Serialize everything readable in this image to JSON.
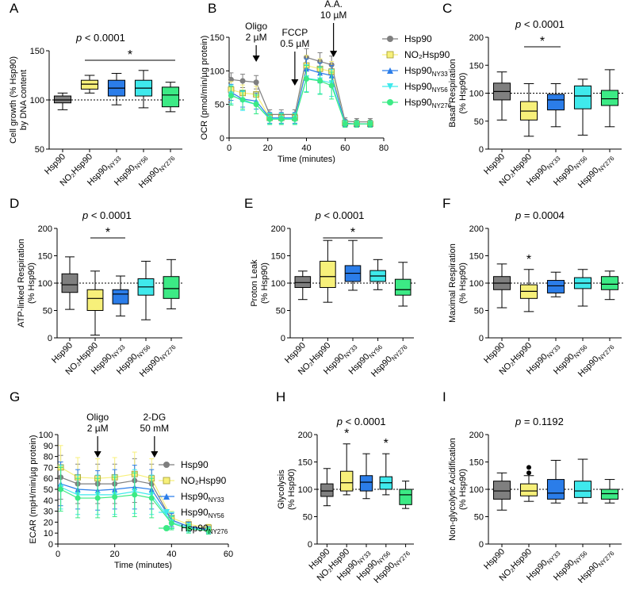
{
  "colors": {
    "Hsp90": "#7f7f7f",
    "NO2Hsp90": "#f7f07a",
    "Hsp90NY33": "#2b7de9",
    "Hsp90NY56": "#3fe9ec",
    "Hsp90NY276": "#3cea85"
  },
  "group_labels": [
    {
      "main": "Hsp90",
      "sub": ""
    },
    {
      "main": "NO₂Hsp90",
      "sub": ""
    },
    {
      "main": "Hsp90",
      "sub": "NY33"
    },
    {
      "main": "Hsp90",
      "sub": "NY56"
    },
    {
      "main": "Hsp90",
      "sub": "NY276"
    }
  ],
  "legend": [
    {
      "main": "Hsp90",
      "sub": ""
    },
    {
      "main": "NO₂Hsp90",
      "sub": ""
    },
    {
      "main": "Hsp90",
      "sub": "NY33"
    },
    {
      "main": "Hsp90",
      "sub": "NY56"
    },
    {
      "main": "Hsp90",
      "sub": "NY276"
    }
  ],
  "chart_data": [
    {
      "panel": "A",
      "type": "box",
      "ylabel_lines": [
        "Cell growth (% Hsp90)",
        "by DNA content"
      ],
      "ylim": [
        50,
        150
      ],
      "yticks": [
        50,
        100,
        150
      ],
      "p_prefix": "p",
      "p_text": " < 0.0001",
      "p_italic_prefix": true,
      "star_from": 1,
      "star_to": 4,
      "boxes": [
        {
          "min": 90,
          "q1": 97,
          "med": 100,
          "q3": 104,
          "max": 107
        },
        {
          "min": 107,
          "q1": 111,
          "med": 116,
          "q3": 120,
          "max": 125
        },
        {
          "min": 95,
          "q1": 104,
          "med": 112,
          "q3": 120,
          "max": 127
        },
        {
          "min": 92,
          "q1": 104,
          "med": 112,
          "q3": 120,
          "max": 130
        },
        {
          "min": 88,
          "q1": 93,
          "med": 105,
          "q3": 113,
          "max": 118
        }
      ]
    },
    {
      "panel": "B",
      "type": "line",
      "ylabel": "OCR (pmol/min/µg protein)",
      "xlabel": "Time (minutes)",
      "xlim": [
        0,
        80
      ],
      "ylim": [
        0,
        150
      ],
      "xticks": [
        0,
        20,
        40,
        60,
        80
      ],
      "yticks": [
        0,
        50,
        100,
        150
      ],
      "x": [
        1,
        7,
        14,
        21,
        27,
        34,
        40,
        47,
        53,
        60,
        66,
        73
      ],
      "series": [
        {
          "name": "Hsp90",
          "marker": "circle",
          "values": [
            87,
            85,
            83,
            35,
            35,
            35,
            120,
            114,
            109,
            25,
            24,
            24
          ],
          "err": [
            10,
            10,
            10,
            7,
            7,
            7,
            13,
            13,
            13,
            5,
            5,
            5
          ]
        },
        {
          "name": "NO2Hsp90",
          "marker": "square",
          "values": [
            72,
            67,
            65,
            30,
            30,
            30,
            108,
            103,
            99,
            22,
            21,
            21
          ],
          "err": [
            12,
            12,
            12,
            8,
            8,
            8,
            15,
            15,
            15,
            5,
            5,
            5
          ]
        },
        {
          "name": "Hsp90NY33",
          "marker": "triangle-up",
          "values": [
            68,
            58,
            55,
            30,
            30,
            30,
            103,
            97,
            93,
            22,
            21,
            21
          ],
          "err": [
            12,
            12,
            12,
            8,
            8,
            8,
            15,
            15,
            15,
            5,
            5,
            5
          ]
        },
        {
          "name": "Hsp90NY56",
          "marker": "triangle-down",
          "values": [
            65,
            55,
            50,
            29,
            29,
            29,
            89,
            86,
            82,
            21,
            21,
            21
          ],
          "err": [
            14,
            14,
            14,
            8,
            8,
            8,
            20,
            20,
            20,
            5,
            5,
            5
          ]
        },
        {
          "name": "Hsp90NY276",
          "marker": "circle",
          "values": [
            63,
            57,
            50,
            28,
            28,
            28,
            88,
            85,
            78,
            21,
            21,
            21
          ],
          "err": [
            14,
            14,
            14,
            8,
            8,
            8,
            20,
            20,
            20,
            5,
            5,
            5
          ]
        }
      ],
      "annotations": [
        {
          "lines": [
            "Oligo",
            "2 µM"
          ],
          "x": 14
        },
        {
          "lines": [
            "FCCP",
            "0.5 µM"
          ],
          "x": 34
        },
        {
          "lines": [
            "A.A.",
            "10 µM"
          ],
          "x": 54
        }
      ]
    },
    {
      "panel": "C",
      "type": "box",
      "ylabel_lines": [
        "Basal Respiration",
        "(% Hsp90)"
      ],
      "ylim": [
        0,
        200
      ],
      "yticks": [
        0,
        50,
        100,
        150,
        200
      ],
      "p_prefix": "p",
      "p_text": " < 0.0001",
      "p_italic_prefix": true,
      "star_from": 1,
      "star_to": 2,
      "boxes": [
        {
          "min": 52,
          "q1": 88,
          "med": 103,
          "q3": 118,
          "max": 138
        },
        {
          "min": 23,
          "q1": 52,
          "med": 68,
          "q3": 85,
          "max": 117
        },
        {
          "min": 40,
          "q1": 70,
          "med": 88,
          "q3": 98,
          "max": 117
        },
        {
          "min": 25,
          "q1": 72,
          "med": 95,
          "q3": 113,
          "max": 125
        },
        {
          "min": 40,
          "q1": 78,
          "med": 90,
          "q3": 105,
          "max": 142
        }
      ]
    },
    {
      "panel": "D",
      "type": "box",
      "ylabel_lines": [
        "ATP-linked Respiration",
        "(% Hsp90)"
      ],
      "ylim": [
        0,
        200
      ],
      "yticks": [
        0,
        50,
        100,
        150,
        200
      ],
      "p_prefix": "p",
      "p_text": " < 0.0001",
      "p_italic_prefix": true,
      "star_from": 1,
      "star_to": 2,
      "boxes": [
        {
          "min": 52,
          "q1": 83,
          "med": 97,
          "q3": 117,
          "max": 148
        },
        {
          "min": 5,
          "q1": 50,
          "med": 72,
          "q3": 88,
          "max": 122
        },
        {
          "min": 40,
          "q1": 62,
          "med": 80,
          "q3": 88,
          "max": 113
        },
        {
          "min": 33,
          "q1": 78,
          "med": 93,
          "q3": 108,
          "max": 140
        },
        {
          "min": 53,
          "q1": 72,
          "med": 90,
          "q3": 112,
          "max": 143
        }
      ]
    },
    {
      "panel": "E",
      "type": "box",
      "ylabel_lines": [
        "Proton Leak",
        "(% Hsp90)"
      ],
      "ylim": [
        0,
        200
      ],
      "yticks": [
        0,
        50,
        100,
        150,
        200
      ],
      "p_prefix": "p",
      "p_text": " < 0.0001",
      "p_italic_prefix": true,
      "star_from": 1,
      "star_to": 3,
      "boxes": [
        {
          "min": 70,
          "q1": 92,
          "med": 101,
          "q3": 112,
          "max": 122
        },
        {
          "min": 65,
          "q1": 92,
          "med": 112,
          "q3": 140,
          "max": 178
        },
        {
          "min": 87,
          "q1": 103,
          "med": 118,
          "q3": 132,
          "max": 178
        },
        {
          "min": 88,
          "q1": 103,
          "med": 113,
          "q3": 123,
          "max": 143
        },
        {
          "min": 58,
          "q1": 78,
          "med": 88,
          "q3": 107,
          "max": 138
        }
      ]
    },
    {
      "panel": "F",
      "type": "box",
      "ylabel_lines": [
        "Maximal Respiration",
        "(% Hsp90)"
      ],
      "ylim": [
        0,
        200
      ],
      "yticks": [
        0,
        50,
        100,
        150,
        200
      ],
      "p_prefix": "p",
      "p_text": " = 0.0004",
      "p_italic_prefix": true,
      "star_single": 1,
      "boxes": [
        {
          "min": 55,
          "q1": 88,
          "med": 100,
          "q3": 112,
          "max": 135
        },
        {
          "min": 48,
          "q1": 72,
          "med": 85,
          "q3": 97,
          "max": 125
        },
        {
          "min": 75,
          "q1": 82,
          "med": 95,
          "q3": 105,
          "max": 120
        },
        {
          "min": 58,
          "q1": 90,
          "med": 100,
          "q3": 110,
          "max": 125
        },
        {
          "min": 70,
          "q1": 88,
          "med": 98,
          "q3": 112,
          "max": 122
        }
      ]
    },
    {
      "panel": "G",
      "type": "line",
      "ylabel": "ECAR (mpH/min/µg protein)",
      "xlabel": "Time (minutes)",
      "xlim": [
        0,
        60
      ],
      "ylim": [
        0,
        100
      ],
      "xticks": [
        0,
        20,
        40,
        60
      ],
      "yticks": [
        0,
        10,
        20,
        30,
        40,
        50,
        60,
        70,
        80,
        90,
        100
      ],
      "x": [
        1,
        7,
        14,
        20,
        27,
        33,
        40,
        46,
        53
      ],
      "series": [
        {
          "name": "Hsp90",
          "marker": "circle",
          "values": [
            61,
            55,
            55,
            55,
            58,
            55,
            22,
            16,
            14
          ],
          "err": [
            20,
            18,
            18,
            18,
            20,
            18,
            6,
            4,
            3
          ]
        },
        {
          "name": "NO2Hsp90",
          "marker": "square",
          "values": [
            70,
            61,
            60,
            61,
            64,
            60,
            24,
            18,
            15
          ],
          "err": [
            20,
            18,
            18,
            18,
            20,
            18,
            6,
            4,
            3
          ]
        },
        {
          "name": "Hsp90NY33",
          "marker": "triangle-up",
          "values": [
            55,
            50,
            49,
            50,
            52,
            50,
            22,
            16,
            13
          ],
          "err": [
            20,
            18,
            18,
            18,
            20,
            18,
            6,
            4,
            3
          ]
        },
        {
          "name": "Hsp90NY56",
          "marker": "triangle-down",
          "values": [
            52,
            45,
            45,
            45,
            48,
            45,
            20,
            15,
            12
          ],
          "err": [
            20,
            18,
            18,
            18,
            20,
            18,
            6,
            4,
            3
          ]
        },
        {
          "name": "Hsp90NY276",
          "marker": "circle",
          "values": [
            50,
            42,
            42,
            43,
            45,
            42,
            19,
            14,
            12
          ],
          "err": [
            20,
            18,
            18,
            18,
            20,
            18,
            6,
            4,
            3
          ]
        }
      ],
      "annotations": [
        {
          "lines": [
            "Oligo",
            "2 µM"
          ],
          "x": 14
        },
        {
          "lines": [
            "2-DG",
            "50 mM"
          ],
          "x": 34
        }
      ]
    },
    {
      "panel": "H",
      "type": "box",
      "ylabel_lines": [
        "Glycolysis",
        "(% Hsp90)"
      ],
      "ylim": [
        0,
        200
      ],
      "yticks": [
        0,
        50,
        100,
        150,
        200
      ],
      "p_prefix": "p",
      "p_text": " < 0.0001",
      "p_italic_prefix": true,
      "star_multi": [
        1,
        3
      ],
      "boxes": [
        {
          "min": 70,
          "q1": 87,
          "med": 97,
          "q3": 110,
          "max": 138
        },
        {
          "min": 90,
          "q1": 97,
          "med": 112,
          "q3": 133,
          "max": 183
        },
        {
          "min": 83,
          "q1": 97,
          "med": 113,
          "q3": 125,
          "max": 165
        },
        {
          "min": 90,
          "q1": 100,
          "med": 112,
          "q3": 123,
          "max": 165
        },
        {
          "min": 65,
          "q1": 72,
          "med": 90,
          "q3": 100,
          "max": 115
        }
      ]
    },
    {
      "panel": "I",
      "type": "box",
      "ylabel_lines": [
        "Non-glycolytic Acidification",
        "(% Hsp90)"
      ],
      "ylim": [
        0,
        200
      ],
      "yticks": [
        0,
        50,
        100,
        150,
        200
      ],
      "p_prefix": "p",
      "p_text": " = 0.1192",
      "p_italic_prefix": true,
      "outliers": [
        {
          "group": 1,
          "values": [
            140,
            130
          ]
        }
      ],
      "boxes": [
        {
          "min": 62,
          "q1": 82,
          "med": 97,
          "q3": 115,
          "max": 130
        },
        {
          "min": 78,
          "q1": 88,
          "med": 97,
          "q3": 110,
          "max": 125
        },
        {
          "min": 75,
          "q1": 82,
          "med": 93,
          "q3": 118,
          "max": 153
        },
        {
          "min": 75,
          "q1": 85,
          "med": 97,
          "q3": 115,
          "max": 155
        },
        {
          "min": 75,
          "q1": 82,
          "med": 92,
          "q3": 100,
          "max": 118
        }
      ]
    }
  ]
}
